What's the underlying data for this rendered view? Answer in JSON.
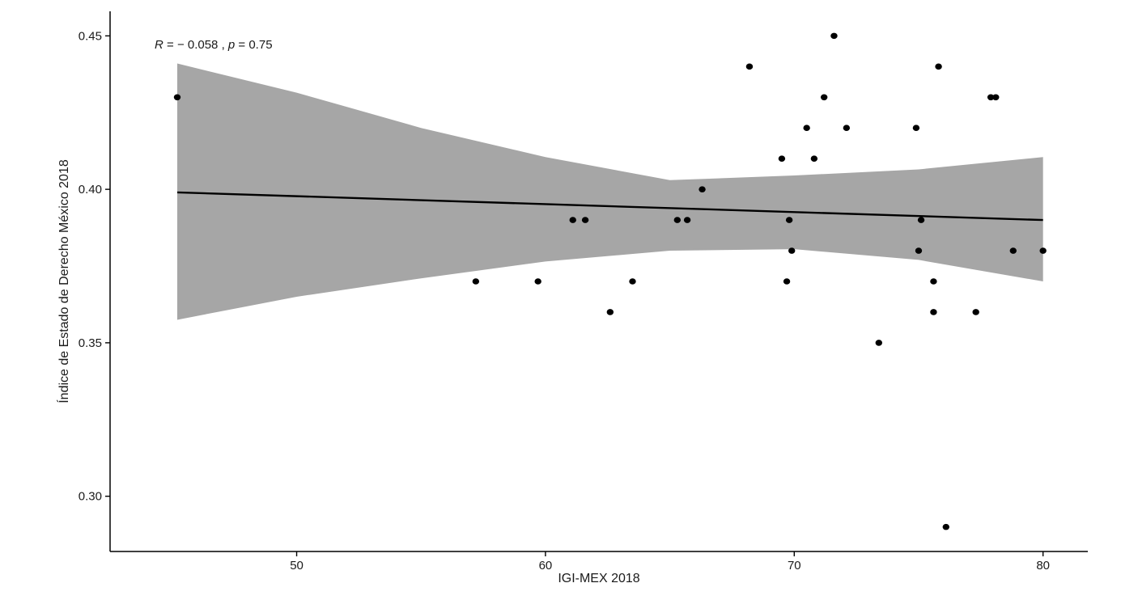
{
  "chart_data": {
    "type": "scatter",
    "title": "",
    "xlabel": "IGI-MEX 2018",
    "ylabel": "Índice de Estado de Derecho México 2018",
    "xlim": [
      42.5,
      81.8
    ],
    "ylim": [
      0.282,
      0.458
    ],
    "x_ticks": [
      50,
      60,
      70,
      80
    ],
    "y_ticks": [
      0.3,
      0.35,
      0.4,
      0.45
    ],
    "x_tick_labels": [
      "50",
      "60",
      "70",
      "80"
    ],
    "y_tick_labels": [
      "0.30",
      "0.35",
      "0.40",
      "0.45"
    ],
    "grid": false,
    "legend": "none",
    "annotation": {
      "r_symbol": "R",
      "r_text": " = − 0.058 , ",
      "p_symbol": "p",
      "p_text": " = 0.75"
    },
    "points": [
      {
        "x": 45.2,
        "y": 0.43
      },
      {
        "x": 57.2,
        "y": 0.37
      },
      {
        "x": 59.7,
        "y": 0.37
      },
      {
        "x": 61.1,
        "y": 0.39
      },
      {
        "x": 61.6,
        "y": 0.39
      },
      {
        "x": 62.6,
        "y": 0.36
      },
      {
        "x": 63.5,
        "y": 0.37
      },
      {
        "x": 65.3,
        "y": 0.39
      },
      {
        "x": 65.7,
        "y": 0.39
      },
      {
        "x": 66.3,
        "y": 0.4
      },
      {
        "x": 68.2,
        "y": 0.44
      },
      {
        "x": 69.5,
        "y": 0.41
      },
      {
        "x": 69.7,
        "y": 0.37
      },
      {
        "x": 69.8,
        "y": 0.39
      },
      {
        "x": 69.9,
        "y": 0.38
      },
      {
        "x": 70.5,
        "y": 0.42
      },
      {
        "x": 70.8,
        "y": 0.41
      },
      {
        "x": 71.2,
        "y": 0.43
      },
      {
        "x": 71.6,
        "y": 0.45
      },
      {
        "x": 72.1,
        "y": 0.42
      },
      {
        "x": 73.4,
        "y": 0.35
      },
      {
        "x": 74.9,
        "y": 0.42
      },
      {
        "x": 75.0,
        "y": 0.38
      },
      {
        "x": 75.1,
        "y": 0.39
      },
      {
        "x": 75.6,
        "y": 0.37
      },
      {
        "x": 75.6,
        "y": 0.36
      },
      {
        "x": 75.8,
        "y": 0.44
      },
      {
        "x": 76.1,
        "y": 0.29
      },
      {
        "x": 77.3,
        "y": 0.36
      },
      {
        "x": 77.9,
        "y": 0.43
      },
      {
        "x": 78.1,
        "y": 0.43
      },
      {
        "x": 78.8,
        "y": 0.38
      },
      {
        "x": 80.0,
        "y": 0.38
      }
    ],
    "fit_line": {
      "x": [
        45.2,
        80.0
      ],
      "y": [
        0.399,
        0.39
      ]
    },
    "confidence_band": {
      "x": [
        45.2,
        50,
        55,
        60,
        65,
        70,
        75,
        80
      ],
      "upper": [
        0.441,
        0.4315,
        0.42,
        0.4105,
        0.403,
        0.4045,
        0.4065,
        0.4105
      ],
      "lower": [
        0.3575,
        0.365,
        0.371,
        0.3765,
        0.38,
        0.3805,
        0.377,
        0.37
      ]
    },
    "colors": {
      "points": "#000000",
      "fit_line": "#000000",
      "band": "#a6a6a6",
      "axis": "#000000"
    }
  }
}
